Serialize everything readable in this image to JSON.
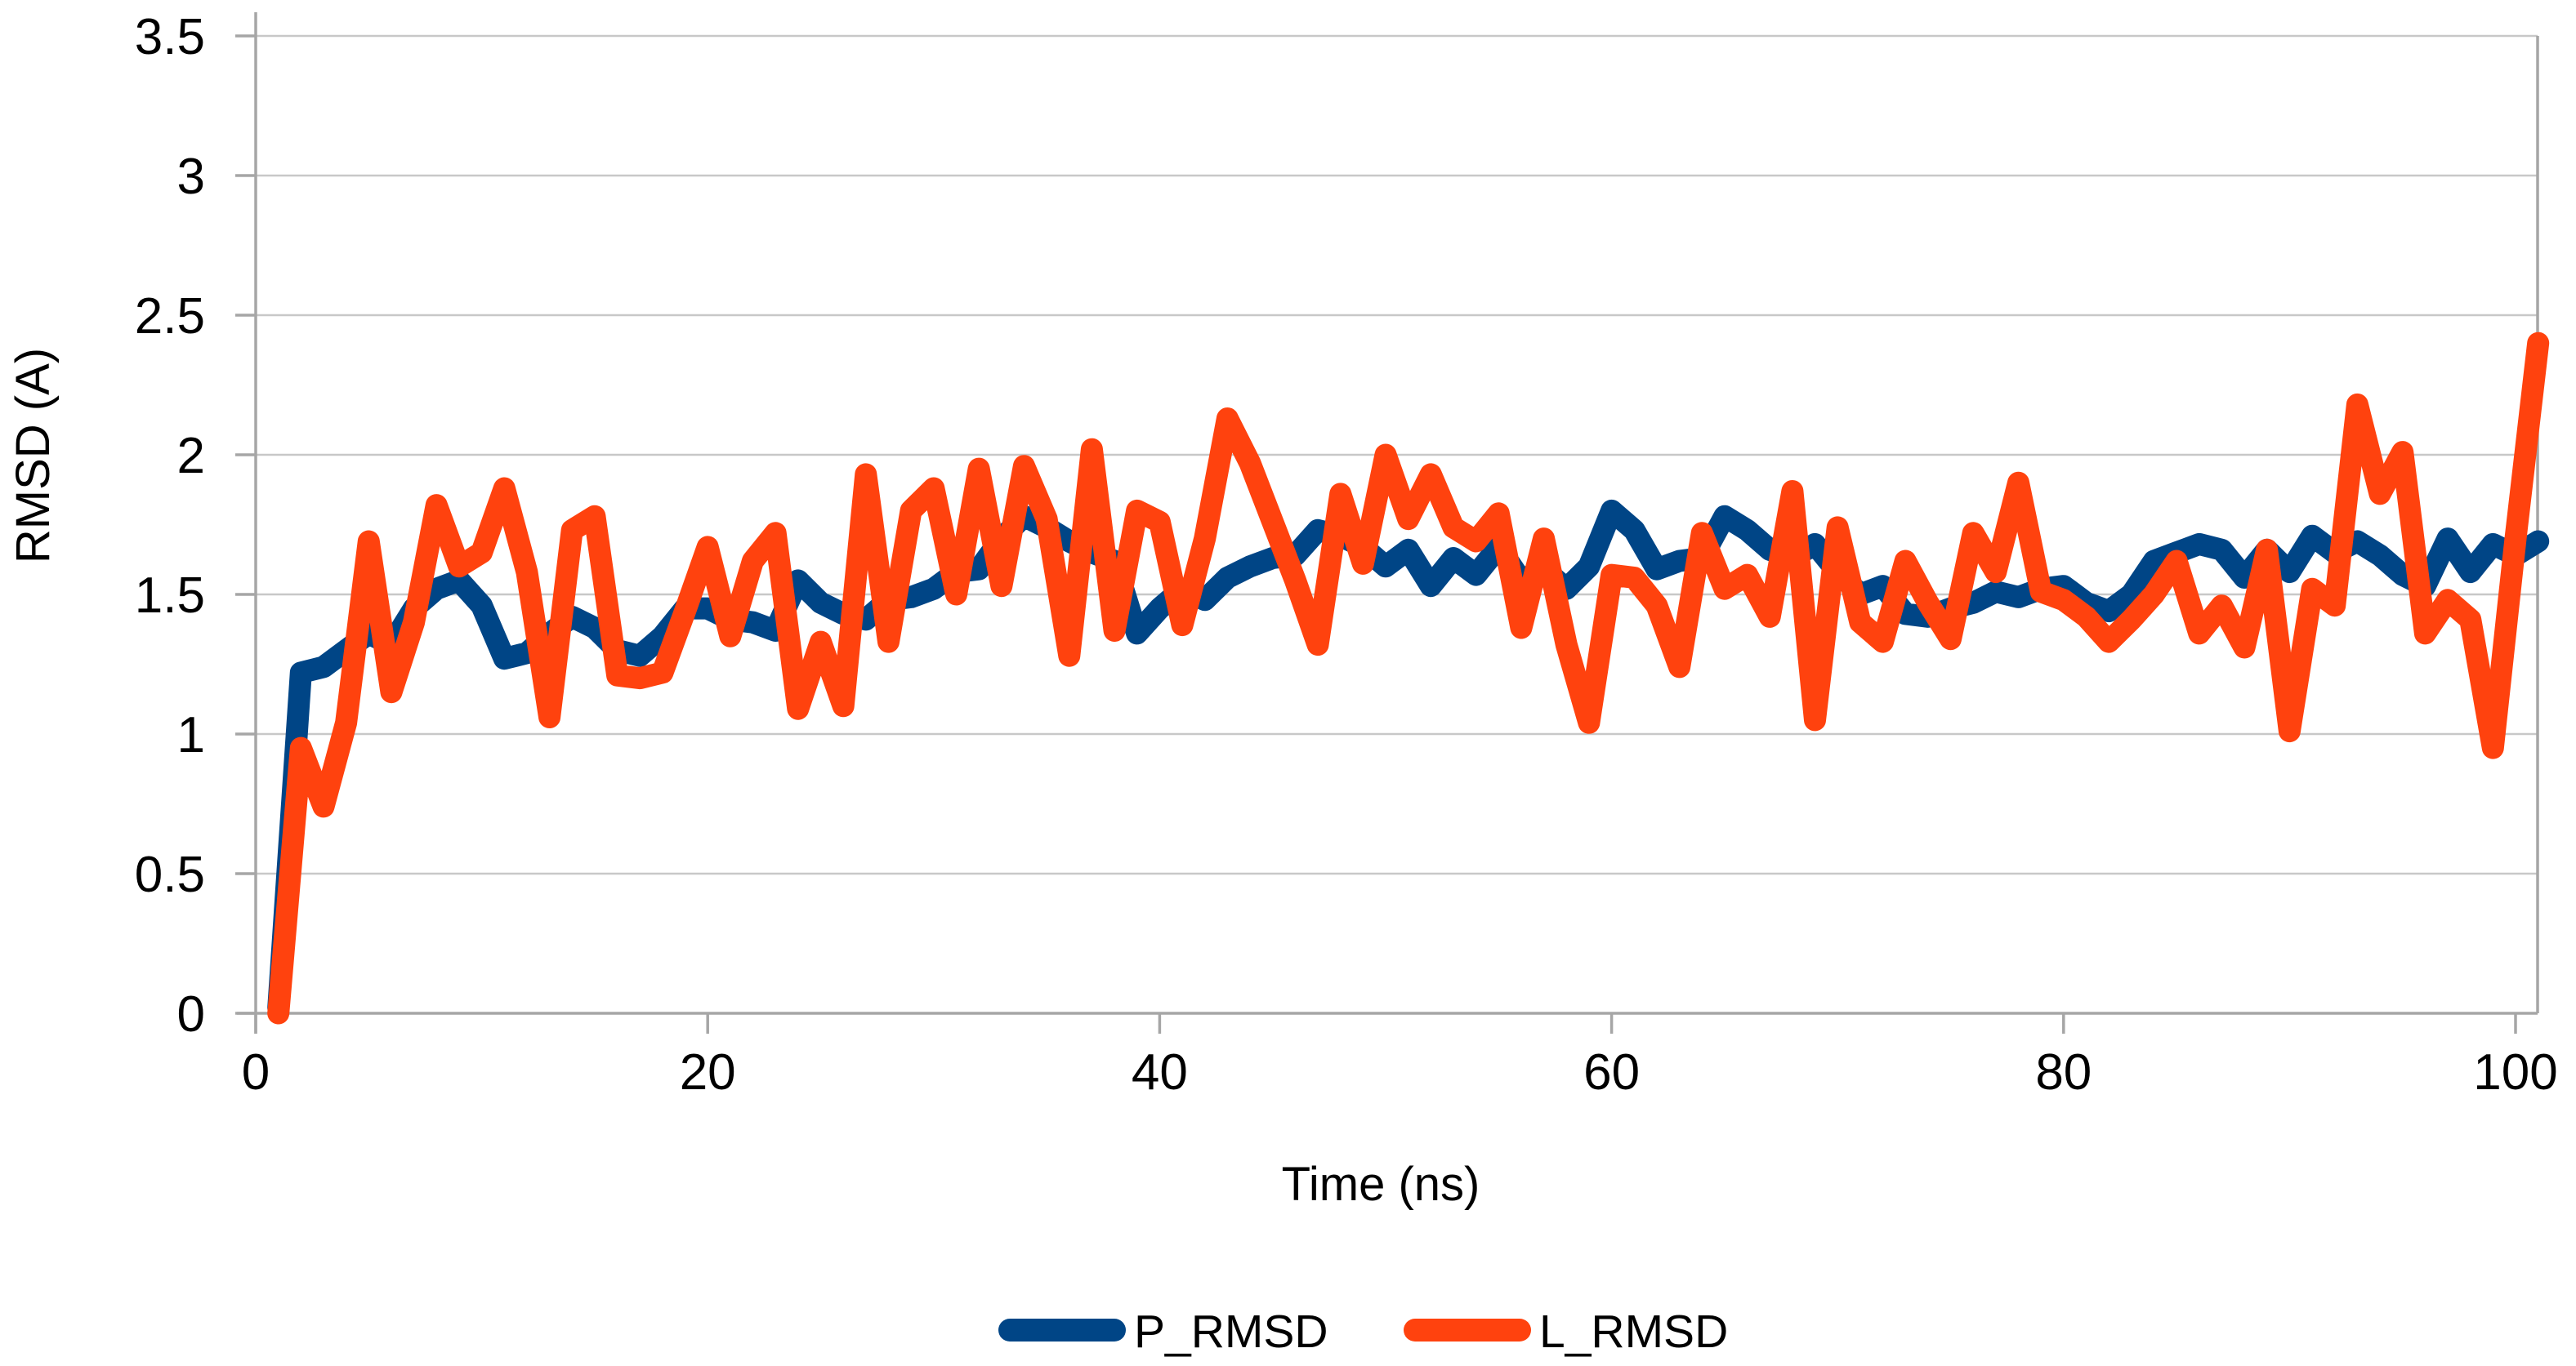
{
  "page": {
    "background": "#FFFFFF"
  },
  "chart_data": {
    "type": "line",
    "title": "",
    "xlabel": "Time (ns)",
    "ylabel": "RMSD (A)",
    "xlim": [
      0,
      101
    ],
    "ylim": [
      0,
      3.5
    ],
    "x_ticks": [
      0,
      20,
      40,
      60,
      80,
      100
    ],
    "y_ticks": [
      0,
      0.5,
      1,
      1.5,
      2,
      2.5,
      3,
      3.5
    ],
    "grid": "horizontal",
    "legend_position": "bottom-center",
    "axis_color": "#A6A6A6",
    "grid_color": "#C8C8C8",
    "text_color": "#000000",
    "x": [
      1,
      2,
      3,
      4,
      5,
      6,
      7,
      8,
      9,
      10,
      11,
      12,
      13,
      14,
      15,
      16,
      17,
      18,
      19,
      20,
      21,
      22,
      23,
      24,
      25,
      26,
      27,
      28,
      29,
      30,
      31,
      32,
      33,
      34,
      35,
      36,
      37,
      38,
      39,
      40,
      41,
      42,
      43,
      44,
      45,
      46,
      47,
      48,
      49,
      50,
      51,
      52,
      53,
      54,
      55,
      56,
      57,
      58,
      59,
      60,
      61,
      62,
      63,
      64,
      65,
      66,
      67,
      68,
      69,
      70,
      71,
      72,
      73,
      74,
      75,
      76,
      77,
      78,
      79,
      80,
      81,
      82,
      83,
      84,
      85,
      86,
      87,
      88,
      89,
      90,
      91,
      92,
      93,
      94,
      95,
      96,
      97,
      98,
      99,
      100,
      101
    ],
    "series": [
      {
        "name": "P_RMSD",
        "color": "#004586",
        "values": [
          0.02,
          1.22,
          1.24,
          1.3,
          1.36,
          1.32,
          1.45,
          1.52,
          1.55,
          1.46,
          1.27,
          1.29,
          1.36,
          1.42,
          1.38,
          1.3,
          1.28,
          1.35,
          1.45,
          1.45,
          1.41,
          1.4,
          1.37,
          1.55,
          1.47,
          1.43,
          1.41,
          1.48,
          1.49,
          1.52,
          1.58,
          1.59,
          1.7,
          1.78,
          1.74,
          1.69,
          1.65,
          1.62,
          1.36,
          1.45,
          1.52,
          1.48,
          1.56,
          1.6,
          1.63,
          1.64,
          1.73,
          1.71,
          1.67,
          1.6,
          1.66,
          1.53,
          1.63,
          1.57,
          1.67,
          1.55,
          1.59,
          1.52,
          1.6,
          1.8,
          1.73,
          1.59,
          1.62,
          1.63,
          1.78,
          1.73,
          1.66,
          1.63,
          1.68,
          1.58,
          1.5,
          1.53,
          1.43,
          1.42,
          1.45,
          1.47,
          1.51,
          1.49,
          1.52,
          1.53,
          1.47,
          1.44,
          1.5,
          1.62,
          1.65,
          1.68,
          1.66,
          1.56,
          1.66,
          1.58,
          1.71,
          1.65,
          1.69,
          1.64,
          1.57,
          1.53,
          1.7,
          1.58,
          1.68,
          1.64,
          1.69
        ]
      },
      {
        "name": "L_RMSD",
        "color": "#FF420E",
        "values": [
          0.0,
          0.95,
          0.74,
          1.04,
          1.69,
          1.15,
          1.4,
          1.82,
          1.6,
          1.65,
          1.88,
          1.58,
          1.06,
          1.73,
          1.78,
          1.21,
          1.2,
          1.22,
          1.44,
          1.67,
          1.35,
          1.62,
          1.72,
          1.09,
          1.33,
          1.1,
          1.93,
          1.33,
          1.8,
          1.88,
          1.5,
          1.95,
          1.53,
          1.96,
          1.77,
          1.28,
          2.02,
          1.37,
          1.8,
          1.76,
          1.39,
          1.7,
          2.13,
          1.97,
          1.76,
          1.55,
          1.32,
          1.86,
          1.61,
          2.0,
          1.77,
          1.93,
          1.74,
          1.69,
          1.79,
          1.38,
          1.7,
          1.32,
          1.04,
          1.57,
          1.56,
          1.46,
          1.24,
          1.72,
          1.52,
          1.57,
          1.42,
          1.87,
          1.05,
          1.74,
          1.4,
          1.33,
          1.62,
          1.47,
          1.34,
          1.72,
          1.58,
          1.9,
          1.51,
          1.48,
          1.42,
          1.33,
          1.41,
          1.5,
          1.62,
          1.36,
          1.46,
          1.31,
          1.66,
          1.01,
          1.52,
          1.46,
          2.18,
          1.86,
          2.01,
          1.36,
          1.48,
          1.41,
          0.95,
          1.7,
          2.4
        ]
      }
    ]
  }
}
